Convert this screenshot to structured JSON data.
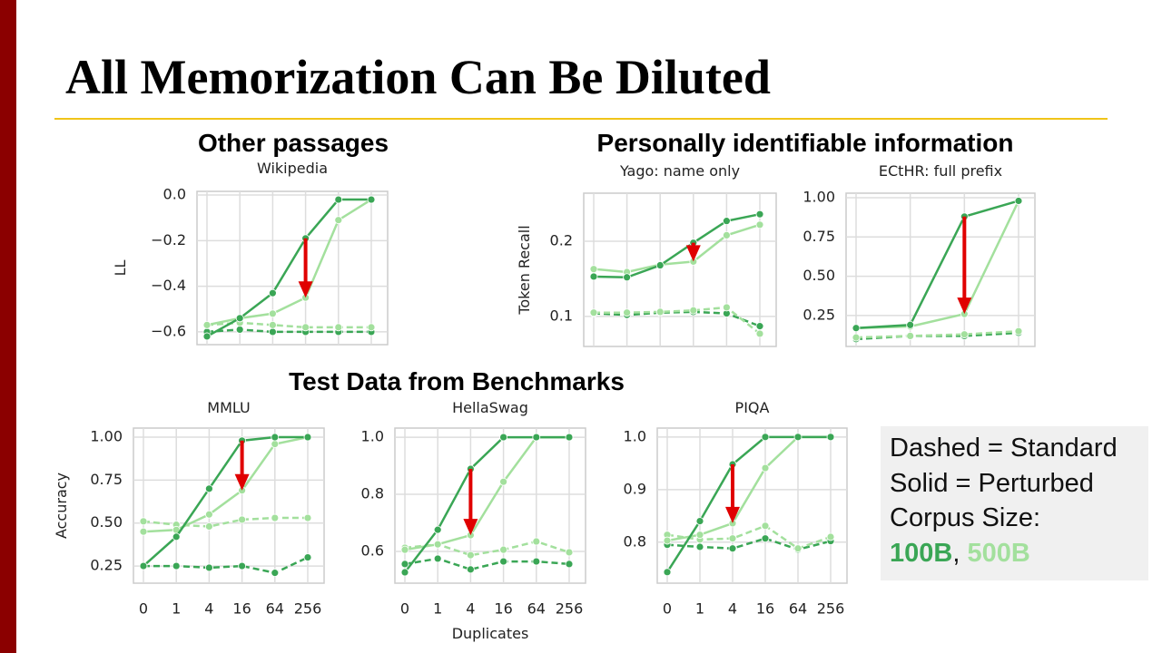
{
  "title": "All Memorization Can Be Diluted",
  "headings": [
    "Other passages",
    "Personally identifiable information",
    "Test Data from Benchmarks"
  ],
  "legend_box": {
    "lines": [
      "Dashed = Standard",
      "Solid = Perturbed",
      "Corpus Size:"
    ],
    "sizes": [
      {
        "text": "100B",
        "color": "#3aa655"
      },
      {
        "text": "500B",
        "color": "#a3e09d"
      }
    ],
    "separator": ","
  },
  "chart_data": [
    {
      "type": "line",
      "title": "Wikipedia",
      "y_label": "LL",
      "grid": true,
      "categories": [
        null,
        null,
        null,
        null,
        null,
        null
      ],
      "ylim": [
        -0.656,
        0.016
      ],
      "yticks": [
        {
          "value": 0,
          "label": "0.0"
        },
        {
          "value": -0.2,
          "label": "−0.2"
        },
        {
          "value": -0.4,
          "label": "−0.4"
        },
        {
          "value": -0.6,
          "label": "−0.6"
        }
      ],
      "series": [
        {
          "color": "#3aa655",
          "dashed": false,
          "values": [
            -0.62,
            -0.54,
            -0.43,
            -0.19,
            -0.02,
            -0.02
          ]
        },
        {
          "color": "#a3e09d",
          "dashed": false,
          "values": [
            -0.57,
            -0.54,
            -0.52,
            -0.45,
            -0.11,
            -0.02
          ]
        },
        {
          "color": "#3aa655",
          "dashed": true,
          "values": [
            -0.6,
            -0.59,
            -0.6,
            -0.6,
            -0.6,
            -0.6
          ]
        },
        {
          "color": "#a3e09d",
          "dashed": true,
          "values": [
            -0.57,
            -0.56,
            -0.57,
            -0.58,
            -0.58,
            -0.58
          ]
        }
      ]
    },
    {
      "type": "line",
      "title": "Yago: name only",
      "y_label": "Token Recall",
      "grid": true,
      "categories": [
        null,
        null,
        null,
        null,
        null,
        null
      ],
      "ylim": [
        0.06,
        0.264
      ],
      "yticks": [
        0.2,
        0.1
      ],
      "series": [
        {
          "color": "#3aa655",
          "dashed": false,
          "values": [
            0.153,
            0.152,
            0.168,
            0.198,
            0.227,
            0.236
          ]
        },
        {
          "color": "#a3e09d",
          "dashed": false,
          "values": [
            0.163,
            0.159,
            0.169,
            0.173,
            0.208,
            0.222
          ]
        },
        {
          "color": "#3aa655",
          "dashed": true,
          "values": [
            0.104,
            0.102,
            0.105,
            0.106,
            0.104,
            0.087
          ]
        },
        {
          "color": "#a3e09d",
          "dashed": true,
          "values": [
            0.105,
            0.105,
            0.106,
            0.108,
            0.112,
            0.077
          ]
        }
      ]
    },
    {
      "type": "line",
      "title": "ECtHR: full prefix",
      "grid": true,
      "categories": [
        null,
        null,
        null,
        null
      ],
      "ylim": [
        0.053,
        1.029
      ],
      "yticks": [
        {
          "value": 1,
          "label": "1.00"
        },
        0.75,
        {
          "value": 0.5,
          "label": "0.50"
        },
        0.25
      ],
      "series": [
        {
          "color": "#3aa655",
          "dashed": false,
          "values": [
            0.17,
            0.19,
            0.88,
            0.98
          ]
        },
        {
          "color": "#a3e09d",
          "dashed": false,
          "values": [
            0.17,
            0.18,
            0.26,
            0.98
          ]
        },
        {
          "color": "#3aa655",
          "dashed": true,
          "values": [
            0.1,
            0.12,
            0.12,
            0.14
          ]
        },
        {
          "color": "#a3e09d",
          "dashed": true,
          "values": [
            0.11,
            0.12,
            0.13,
            0.15
          ]
        }
      ]
    },
    {
      "type": "line",
      "title": "MMLU",
      "y_label": "Accuracy",
      "grid": true,
      "categories": [
        "0",
        "1",
        "4",
        "16",
        "64",
        "256"
      ],
      "ylim": [
        0.15,
        1.053
      ],
      "yticks": [
        {
          "value": 1,
          "label": "1.00"
        },
        0.75,
        {
          "value": 0.5,
          "label": "0.50"
        },
        0.25
      ],
      "series": [
        {
          "color": "#3aa655",
          "dashed": false,
          "values": [
            0.25,
            0.42,
            0.7,
            0.98,
            1.0,
            1.0
          ]
        },
        {
          "color": "#a3e09d",
          "dashed": false,
          "values": [
            0.45,
            0.46,
            0.55,
            0.69,
            0.96,
            1.0
          ]
        },
        {
          "color": "#3aa655",
          "dashed": true,
          "values": [
            0.25,
            0.25,
            0.24,
            0.25,
            0.21,
            0.3
          ]
        },
        {
          "color": "#a3e09d",
          "dashed": true,
          "values": [
            0.51,
            0.49,
            0.48,
            0.52,
            0.53,
            0.53
          ]
        }
      ]
    },
    {
      "type": "line",
      "title": "HellaSwag",
      "x_label": "Duplicates",
      "grid": true,
      "categories": [
        "0",
        "1",
        "4",
        "16",
        "64",
        "256"
      ],
      "ylim": [
        0.489,
        1.032
      ],
      "yticks": [
        {
          "value": 1,
          "label": "1.0"
        },
        0.8,
        0.6
      ],
      "series": [
        {
          "color": "#3aa655",
          "dashed": false,
          "values": [
            0.527,
            0.676,
            0.889,
            1.0,
            1.0,
            1.0
          ]
        },
        {
          "color": "#a3e09d",
          "dashed": false,
          "values": [
            0.606,
            0.625,
            0.657,
            0.844,
            1.0,
            1.0
          ]
        },
        {
          "color": "#3aa655",
          "dashed": true,
          "values": [
            0.556,
            0.575,
            0.537,
            0.565,
            0.565,
            0.556
          ]
        },
        {
          "color": "#a3e09d",
          "dashed": true,
          "values": [
            0.613,
            0.625,
            0.587,
            0.606,
            0.635,
            0.597
          ]
        }
      ]
    },
    {
      "type": "line",
      "title": "PIQA",
      "grid": true,
      "categories": [
        "0",
        "1",
        "4",
        "16",
        "64",
        "256"
      ],
      "ylim": [
        0.722,
        1.017
      ],
      "yticks": [
        {
          "value": 1,
          "label": "1.0"
        },
        0.9,
        0.8
      ],
      "series": [
        {
          "color": "#3aa655",
          "dashed": false,
          "values": [
            0.743,
            0.84,
            0.948,
            1.0,
            1.0,
            1.0
          ]
        },
        {
          "color": "#a3e09d",
          "dashed": false,
          "values": [
            0.803,
            0.814,
            0.836,
            0.941,
            1.0,
            1.0
          ]
        },
        {
          "color": "#3aa655",
          "dashed": true,
          "values": [
            0.795,
            0.791,
            0.788,
            0.807,
            0.786,
            0.802
          ]
        },
        {
          "color": "#a3e09d",
          "dashed": true,
          "values": [
            0.814,
            0.805,
            0.807,
            0.831,
            0.788,
            0.81
          ]
        }
      ]
    }
  ]
}
